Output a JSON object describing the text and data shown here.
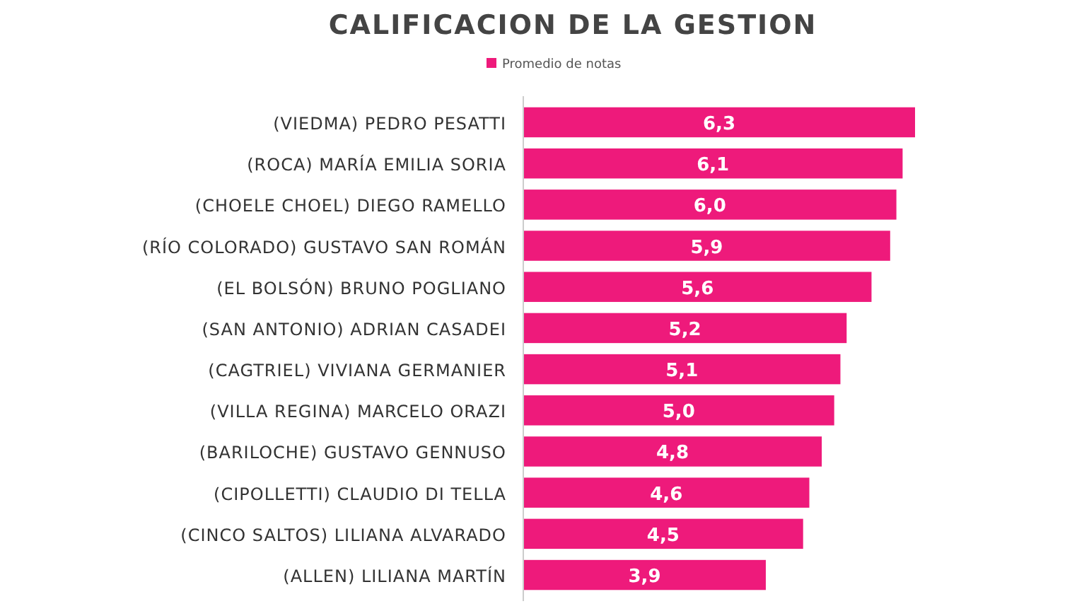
{
  "chart_data": {
    "type": "bar",
    "orientation": "horizontal",
    "title": "CALIFICACION DE LA GESTION",
    "categories": [
      "(VIEDMA) PEDRO PESATTI",
      "(ROCA) MARÍA EMILIA SORIA",
      "(CHOELE CHOEL) DIEGO RAMELLO",
      "(RÍO COLORADO) GUSTAVO SAN ROMÁN",
      "(EL BOLSÓN) BRUNO POGLIANO",
      "(SAN ANTONIO) ADRIAN CASADEI",
      "(CAGTRIEL) VIVIANA GERMANIER",
      "(VILLA REGINA) MARCELO ORAZI",
      "(BARILOCHE) GUSTAVO GENNUSO",
      "(CIPOLLETTI) CLAUDIO DI TELLA",
      "(CINCO SALTOS) LILIANA ALVARADO",
      "(ALLEN) LILIANA MARTÍN"
    ],
    "series": [
      {
        "name": "Promedio de notas",
        "color": "#ee1a7b",
        "values": [
          6.3,
          6.1,
          6.0,
          5.9,
          5.6,
          5.2,
          5.1,
          5.0,
          4.8,
          4.6,
          4.5,
          3.9
        ],
        "value_labels": [
          "6,3",
          "6,1",
          "6,0",
          "5,9",
          "5,6",
          "5,2",
          "5,1",
          "5,0",
          "4,8",
          "4,6",
          "4,5",
          "3,9"
        ]
      }
    ],
    "legend": "top"
  }
}
